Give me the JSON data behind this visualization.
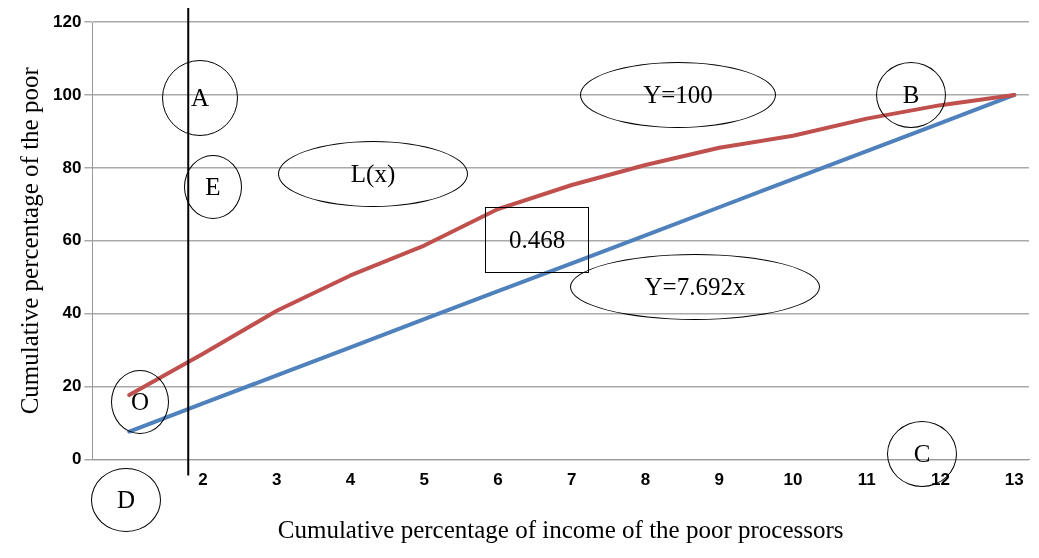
{
  "chart_data": {
    "type": "line",
    "xlabel": "Cumulative percentage of income of the poor processors",
    "ylabel": "Cumulative percentage of the poor",
    "x": [
      1,
      2,
      3,
      4,
      5,
      6,
      7,
      8,
      9,
      10,
      11,
      12,
      13
    ],
    "xlim": [
      0.5,
      13.2
    ],
    "xticks": [
      2,
      3,
      4,
      5,
      6,
      7,
      8,
      9,
      10,
      11,
      12,
      13
    ],
    "ylim": [
      0,
      120
    ],
    "yticks": [
      0,
      20,
      40,
      60,
      80,
      100,
      120
    ],
    "series": [
      {
        "color": "#c0504d",
        "values": [
          17.7,
          29,
          40.8,
          50.5,
          58.7,
          68.7,
          75.3,
          80.8,
          85.5,
          88.8,
          93.5,
          97.2,
          100
        ]
      },
      {
        "color": "#4f81bd",
        "values": [
          7.7,
          15.4,
          23.1,
          30.8,
          38.5,
          46.2,
          53.8,
          61.5,
          69.2,
          76.9,
          84.6,
          92.3,
          100
        ]
      }
    ],
    "ref_lines": [
      {
        "axis": "x",
        "value": 1.8,
        "color": "#000000"
      }
    ],
    "annotations": [
      "A",
      "B",
      "C",
      "D",
      "E",
      "O",
      "Y=100",
      "L(x)",
      "0.468",
      "Y=7.692x"
    ],
    "grid": "y",
    "legend": false,
    "marker": "none",
    "line_style": "solid"
  }
}
